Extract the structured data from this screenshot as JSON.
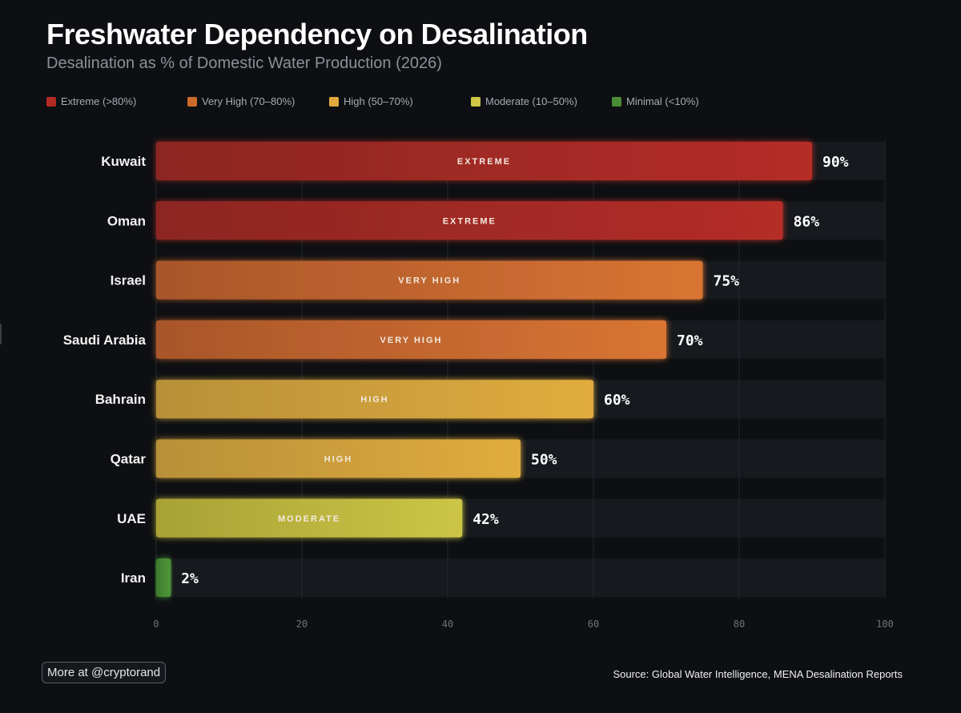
{
  "title": "Freshwater Dependency on Desalination",
  "subtitle": "Desalination as % of Domestic Water Production (2026)",
  "legend": [
    {
      "label": "Extreme (>80%)",
      "color": "#b42a24"
    },
    {
      "label": "Very High (70–80%)",
      "color": "#cc6a2c"
    },
    {
      "label": "High (50–70%)",
      "color": "#e0a83c"
    },
    {
      "label": "Moderate (10–50%)",
      "color": "#cfc444"
    },
    {
      "label": "Minimal (<10%)",
      "color": "#4a8c34"
    }
  ],
  "chart_data": {
    "type": "bar",
    "orientation": "horizontal",
    "title": "Freshwater Dependency on Desalination",
    "subtitle": "Desalination as % of Domestic Water Production (2026)",
    "categories": [
      "Kuwait",
      "Oman",
      "Israel",
      "Saudi Arabia",
      "Bahrain",
      "Qatar",
      "UAE",
      "Iran"
    ],
    "values": [
      90,
      86,
      75,
      70,
      60,
      50,
      42,
      2
    ],
    "value_labels": [
      "90%",
      "86%",
      "75%",
      "70%",
      "60%",
      "50%",
      "42%",
      "2%"
    ],
    "tiers": [
      "EXTREME",
      "EXTREME",
      "VERY HIGH",
      "VERY HIGH",
      "HIGH",
      "HIGH",
      "MODERATE",
      ""
    ],
    "colors": [
      [
        "#8c2622",
        "#b42d27"
      ],
      [
        "#8c2622",
        "#b42d27"
      ],
      [
        "#a8562a",
        "#d97533"
      ],
      [
        "#a8562a",
        "#d97533"
      ],
      [
        "#b89038",
        "#e0ac3e"
      ],
      [
        "#b89038",
        "#e0ac3e"
      ],
      [
        "#a8a236",
        "#cdc546"
      ],
      [
        "#3e7a2c",
        "#4e9838"
      ]
    ],
    "xlim": [
      0,
      100
    ],
    "xticks": [
      0,
      20,
      40,
      60,
      80,
      100
    ],
    "xlabel": "",
    "ylabel": "",
    "grid": true,
    "legend": "top"
  },
  "footer": {
    "more_label": "More at @cryptorand",
    "source": "Source: Global Water Intelligence, MENA Desalination Reports"
  }
}
